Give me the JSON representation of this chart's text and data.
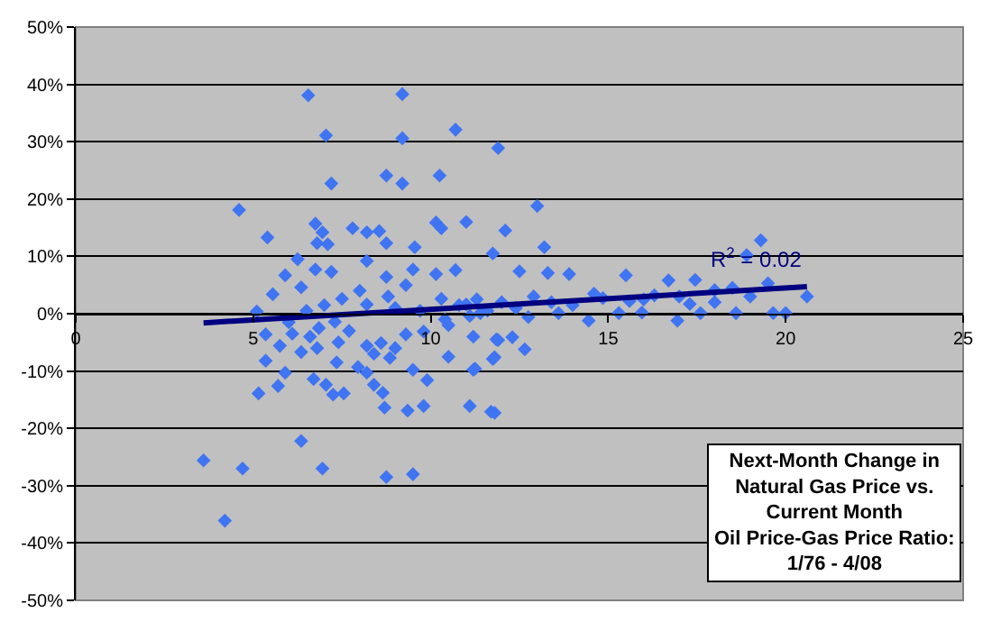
{
  "chart_data": {
    "type": "scatter",
    "marker": "diamond",
    "grid": "y",
    "xlim": [
      0,
      25
    ],
    "xticks": [
      0,
      5,
      10,
      15,
      20,
      25
    ],
    "ylim": [
      -50,
      50
    ],
    "yticks": [
      {
        "value": -50,
        "label": "-50%"
      },
      {
        "value": -40,
        "label": "-40%"
      },
      {
        "value": -30,
        "label": "-30%"
      },
      {
        "value": -20,
        "label": "-20%"
      },
      {
        "value": -10,
        "label": "-10%"
      },
      {
        "value": 0,
        "label": "0%"
      },
      {
        "value": 10,
        "label": "10%"
      },
      {
        "value": 20,
        "label": "20%"
      },
      {
        "value": 30,
        "label": "30%"
      },
      {
        "value": 40,
        "label": "40%"
      },
      {
        "value": 50,
        "label": "50%"
      }
    ],
    "series": [
      {
        "color": "#3f74f2",
        "x": [
          6.55,
          9.2,
          7.05,
          9.2,
          10.7,
          7.2,
          8.75,
          9.2,
          10.25,
          4.6,
          5.4,
          6.75,
          6.95,
          7.8,
          8.2,
          8.55,
          8.75,
          9.55,
          10.15,
          10.3,
          11.0,
          6.8,
          7.1,
          6.25,
          5.9,
          5.55,
          5.1,
          6.75,
          7.2,
          8.2,
          8.75,
          9.5,
          10.15,
          10.7,
          6.35,
          7.5,
          8.2,
          9.0,
          9.7,
          10.3,
          11.0,
          11.1,
          11.4,
          5.35,
          5.75,
          6.35,
          6.6,
          6.85,
          7.3,
          8.2,
          8.6,
          8.85,
          9.3,
          9.8,
          10.5,
          11.2,
          11.9,
          5.35,
          7.35,
          7.95,
          8.2,
          9.5,
          10.5,
          11.25,
          11.8,
          5.9,
          5.7,
          5.15,
          6.7,
          7.05,
          7.25,
          7.55,
          8.4,
          8.65,
          9.9,
          8.7,
          9.35,
          9.8,
          11.1,
          11.8,
          6.35,
          3.6,
          4.7,
          6.95,
          8.75,
          9.5,
          4.2,
          11.9,
          13.0,
          12.1,
          13.2,
          11.75,
          18.9,
          19.3,
          13.9,
          13.3,
          15.5,
          16.7,
          17.45,
          19.5,
          14.6,
          16.3,
          18.0,
          18.5,
          20.6,
          15.3,
          15.95,
          16.95,
          17.6,
          18.6,
          19.65,
          20.0,
          17.3,
          14.45,
          13.6,
          12.75,
          12.3,
          12.65,
          11.85,
          11.75,
          11.2,
          11.7,
          12.5,
          14.85,
          15.6,
          10.8,
          11.3,
          11.6,
          10.4,
          12.0,
          12.4,
          12.9,
          13.4,
          14.0,
          16.0,
          17.0,
          18.0,
          19.0,
          9.0,
          8.4,
          7.7,
          6.0,
          6.5,
          7.0,
          8.0,
          8.8,
          9.3,
          6.1,
          6.8,
          7.4
        ],
        "values": [
          38.1,
          38.3,
          31.1,
          30.6,
          32.1,
          22.7,
          24.1,
          22.7,
          24.1,
          18.1,
          13.3,
          15.7,
          14.2,
          14.9,
          14.2,
          14.4,
          12.3,
          11.6,
          15.9,
          14.9,
          16.0,
          12.3,
          12.1,
          9.5,
          6.7,
          3.4,
          0.4,
          7.7,
          7.3,
          9.2,
          6.4,
          7.7,
          6.9,
          7.6,
          4.6,
          2.6,
          1.6,
          1.0,
          0.5,
          2.6,
          1.6,
          -0.4,
          0.1,
          -3.6,
          -5.6,
          -6.7,
          -4.0,
          -2.5,
          -1.4,
          -5.6,
          -5.1,
          -7.7,
          -3.6,
          -3.1,
          -2.0,
          -4.0,
          -4.6,
          -8.2,
          -8.5,
          -9.3,
          -10.3,
          -9.8,
          -7.5,
          -9.6,
          -7.6,
          -10.3,
          -12.6,
          -13.9,
          -11.4,
          -12.4,
          -14.1,
          -13.9,
          -12.4,
          -13.8,
          -11.6,
          -16.4,
          -16.9,
          -16.1,
          -16.1,
          -17.3,
          -22.2,
          -25.6,
          -27.0,
          -27.0,
          -28.5,
          -28.0,
          -36.1,
          28.9,
          18.8,
          14.5,
          11.6,
          10.5,
          10.2,
          12.8,
          6.9,
          7.1,
          6.7,
          5.8,
          5.9,
          5.3,
          3.5,
          3.2,
          4.1,
          4.5,
          3.0,
          0.1,
          0.2,
          -1.2,
          0.1,
          0.1,
          0.1,
          0.1,
          1.7,
          -1.2,
          0.1,
          -0.6,
          -4.1,
          -6.2,
          -4.5,
          -7.9,
          -9.8,
          -17.1,
          7.4,
          2.7,
          2.2,
          1.5,
          2.5,
          0.5,
          -1.0,
          2.0,
          1.0,
          3.0,
          2.0,
          1.5,
          2.5,
          3.0,
          2.0,
          3.0,
          -6.0,
          -7.0,
          -3.0,
          -1.5,
          0.5,
          1.5,
          4.0,
          3.0,
          5.0,
          -3.5,
          -6.0,
          -5.0
        ]
      },
      {
        "type": "line",
        "color": "#000080",
        "line_style": "solid",
        "marker": "none",
        "x": [
          3.6,
          20.6
        ],
        "values": [
          -1.6,
          4.7
        ]
      }
    ],
    "annotations": [
      {
        "text": "R$^{2}$ = 0.02",
        "x": 20.6,
        "y": 4.7
      },
      "Next-Month Change in\nNatural Gas Price vs.\nCurrent Month\nOil Price-Gas Price Ratio:\n1/76 - 4/08"
    ]
  }
}
